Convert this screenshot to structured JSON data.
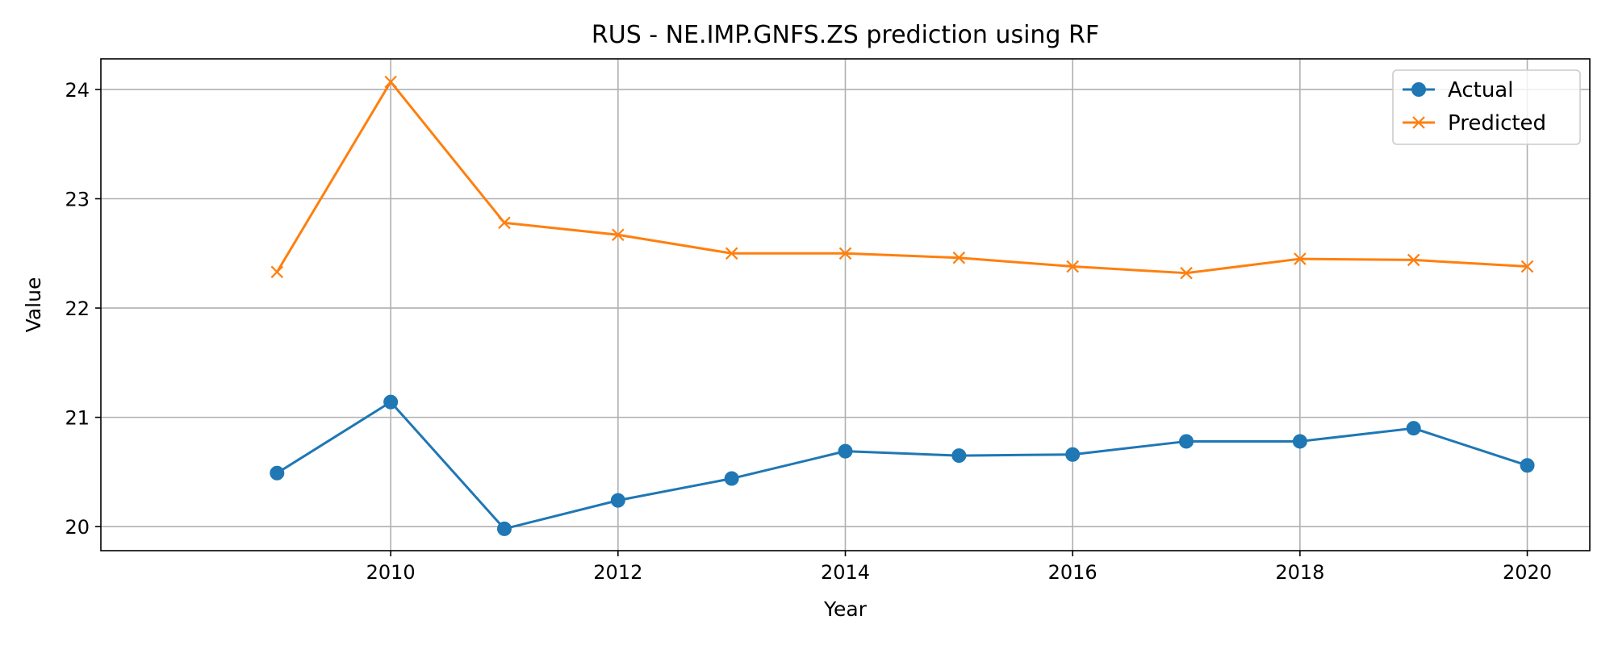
{
  "chart_data": {
    "type": "line",
    "title": "RUS - NE.IMP.GNFS.ZS prediction using RF",
    "xlabel": "Year",
    "ylabel": "Value",
    "x": [
      2009,
      2010,
      2011,
      2012,
      2013,
      2014,
      2015,
      2016,
      2017,
      2018,
      2019,
      2020
    ],
    "xlim": [
      2007.45,
      2020.55
    ],
    "ylim": [
      19.78,
      24.28
    ],
    "xticks": [
      2010,
      2012,
      2014,
      2016,
      2018,
      2020
    ],
    "yticks": [
      20,
      21,
      22,
      23,
      24
    ],
    "grid": true,
    "legend_position": "top-right",
    "series": [
      {
        "name": "Actual",
        "color": "#1f77b4",
        "marker": "circle",
        "values": [
          20.49,
          21.14,
          19.98,
          20.24,
          20.44,
          20.69,
          20.65,
          20.66,
          20.78,
          20.78,
          20.9,
          20.56
        ]
      },
      {
        "name": "Predicted",
        "color": "#ff7f0e",
        "marker": "x",
        "values": [
          22.33,
          24.07,
          22.78,
          22.67,
          22.5,
          22.5,
          22.46,
          22.38,
          22.32,
          22.45,
          22.44,
          22.38
        ]
      }
    ]
  }
}
